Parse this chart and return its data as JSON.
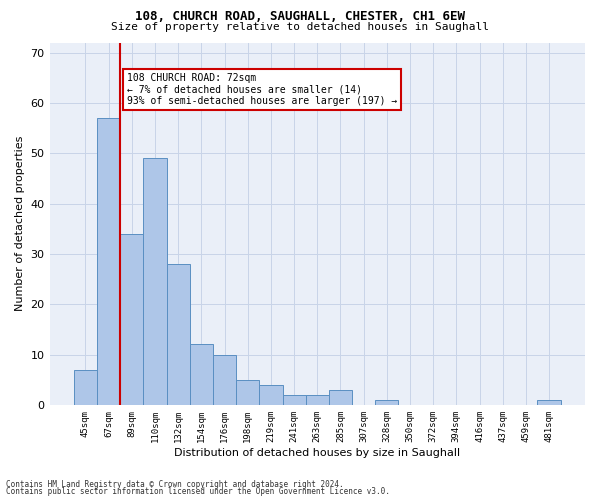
{
  "title1": "108, CHURCH ROAD, SAUGHALL, CHESTER, CH1 6EW",
  "title2": "Size of property relative to detached houses in Saughall",
  "xlabel": "Distribution of detached houses by size in Saughall",
  "ylabel": "Number of detached properties",
  "categories": [
    "45sqm",
    "67sqm",
    "89sqm",
    "110sqm",
    "132sqm",
    "154sqm",
    "176sqm",
    "198sqm",
    "219sqm",
    "241sqm",
    "263sqm",
    "285sqm",
    "307sqm",
    "328sqm",
    "350sqm",
    "372sqm",
    "394sqm",
    "416sqm",
    "437sqm",
    "459sqm",
    "481sqm"
  ],
  "values": [
    7,
    57,
    34,
    49,
    28,
    12,
    10,
    5,
    4,
    2,
    2,
    3,
    0,
    1,
    0,
    0,
    0,
    0,
    0,
    0,
    1
  ],
  "bar_color": "#aec6e8",
  "bar_edge_color": "#5a8fc2",
  "subject_line_color": "#cc0000",
  "annotation_text": "108 CHURCH ROAD: 72sqm\n← 7% of detached houses are smaller (14)\n93% of semi-detached houses are larger (197) →",
  "annotation_box_color": "#ffffff",
  "annotation_box_edge_color": "#cc0000",
  "ylim": [
    0,
    72
  ],
  "yticks": [
    0,
    10,
    20,
    30,
    40,
    50,
    60,
    70
  ],
  "background_color": "#ffffff",
  "ax_background_color": "#eaeff8",
  "grid_color": "#c8d4e8",
  "footer1": "Contains HM Land Registry data © Crown copyright and database right 2024.",
  "footer2": "Contains public sector information licensed under the Open Government Licence v3.0."
}
